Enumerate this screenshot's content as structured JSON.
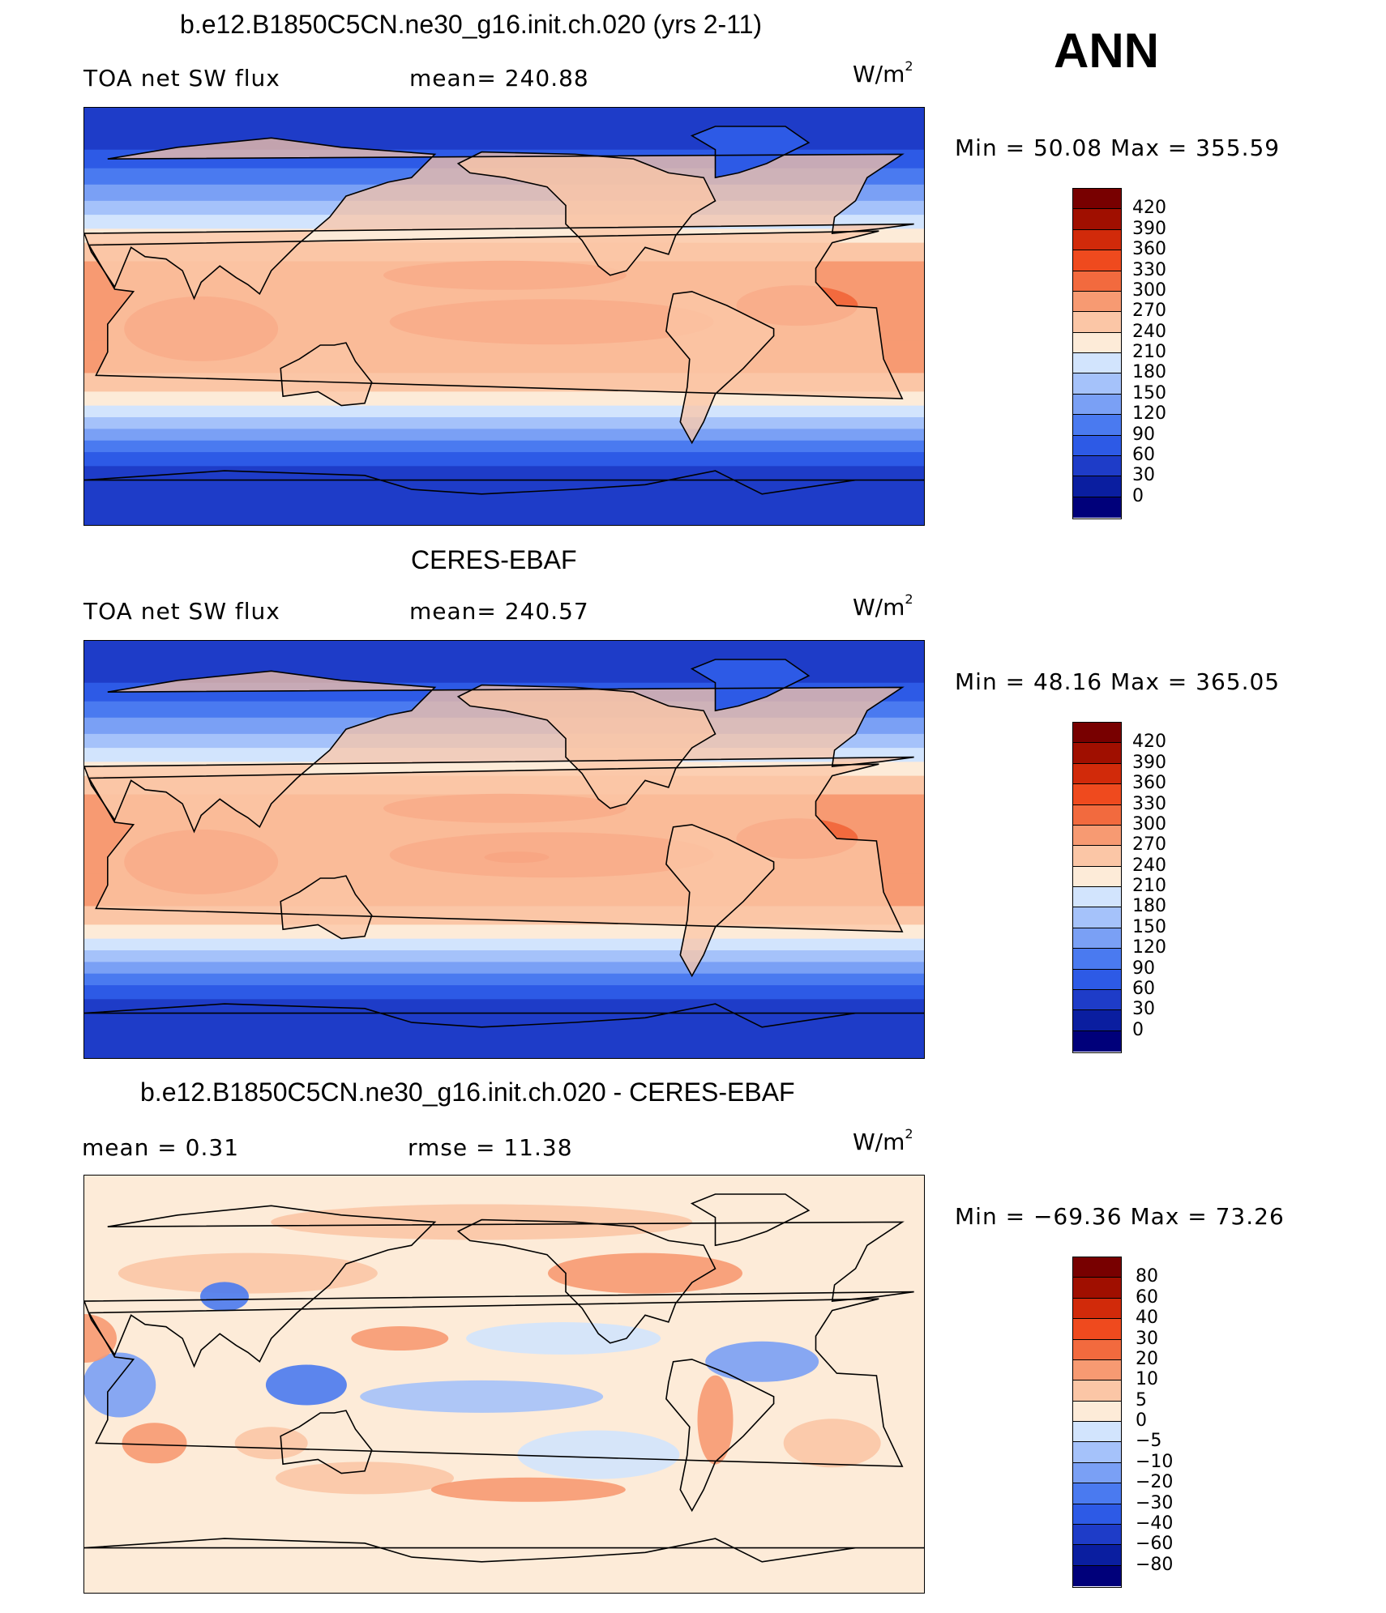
{
  "season": "ANN",
  "units_base": "W/m",
  "units_exp": "2",
  "colors": {
    "abs_scale": [
      "#00007a",
      "#0a1ea0",
      "#1e3cc8",
      "#2d5ae6",
      "#4a7af0",
      "#7aa0f5",
      "#a5c2fa",
      "#d2e4fd",
      "#fdebd8",
      "#fbc6a6",
      "#f79a72",
      "#f26a3e",
      "#ef4a1e",
      "#d12a0a",
      "#a00f00",
      "#780000"
    ],
    "diff_scale": [
      "#00007a",
      "#0a1ea0",
      "#1e3cc8",
      "#2d5ae6",
      "#4a7af0",
      "#7aa0f5",
      "#a5c2fa",
      "#d2e4fd",
      "#fdebd8",
      "#fbc6a6",
      "#f79a72",
      "#f26a3e",
      "#ef4a1e",
      "#d12a0a",
      "#a00f00",
      "#780000"
    ]
  },
  "panels": [
    {
      "title": "b.e12.B1850C5CN.ne30_g16.init.ch.020 (yrs 2-11)",
      "variable": "TOA net SW flux",
      "left_stat": "TOA net SW flux",
      "center_stat": "mean=  240.88",
      "minmax": "Min  =    50.08  Max  =  355.59",
      "colorbar_ticks": [
        "420",
        "390",
        "360",
        "330",
        "300",
        "270",
        "240",
        "210",
        "180",
        "150",
        "120",
        "90",
        "60",
        "30",
        "0"
      ]
    },
    {
      "title": "CERES-EBAF",
      "left_stat": "TOA net SW flux",
      "center_stat": "mean=  240.57",
      "minmax": "Min  =    48.16  Max  =  365.05",
      "colorbar_ticks": [
        "420",
        "390",
        "360",
        "330",
        "300",
        "270",
        "240",
        "210",
        "180",
        "150",
        "120",
        "90",
        "60",
        "30",
        "0"
      ]
    },
    {
      "title": "b.e12.B1850C5CN.ne30_g16.init.ch.020 - CERES-EBAF",
      "left_stat": "mean  =      0.31",
      "center_stat": "rmse  =    11.38",
      "minmax": "Min  =  −69.36  Max  =     73.26",
      "colorbar_ticks": [
        "80",
        "60",
        "40",
        "30",
        "20",
        "10",
        "5",
        "0",
        "−5",
        "−10",
        "−20",
        "−30",
        "−40",
        "−60",
        "−80"
      ]
    }
  ],
  "chart_data": [
    {
      "type": "heatmap",
      "title": "b.e12.B1850C5CN.ne30_g16.init.ch.020 (yrs 2-11)",
      "variable": "TOA net SW flux",
      "units": "W/m2",
      "mean": 240.88,
      "min": 50.08,
      "max": 355.59,
      "levels": [
        0,
        30,
        60,
        90,
        120,
        150,
        180,
        210,
        240,
        270,
        300,
        330,
        360,
        390,
        420
      ]
    },
    {
      "type": "heatmap",
      "title": "CERES-EBAF",
      "variable": "TOA net SW flux",
      "units": "W/m2",
      "mean": 240.57,
      "min": 48.16,
      "max": 365.05,
      "levels": [
        0,
        30,
        60,
        90,
        120,
        150,
        180,
        210,
        240,
        270,
        300,
        330,
        360,
        390,
        420
      ]
    },
    {
      "type": "heatmap",
      "title": "b.e12.B1850C5CN.ne30_g16.init.ch.020 - CERES-EBAF",
      "units": "W/m2",
      "mean": 0.31,
      "rmse": 11.38,
      "min": -69.36,
      "max": 73.26,
      "levels": [
        -80,
        -60,
        -40,
        -30,
        -20,
        -10,
        -5,
        0,
        5,
        10,
        20,
        30,
        40,
        60,
        80
      ]
    }
  ]
}
